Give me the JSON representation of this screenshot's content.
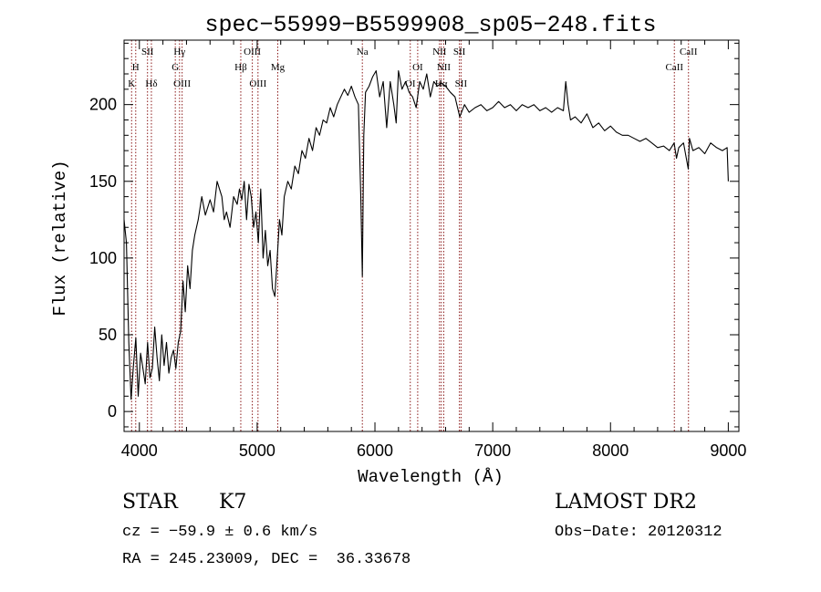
{
  "chart_data": {
    "type": "line",
    "title": "spec−55999−B5599908_sp05−248.fits",
    "xlabel": "Wavelength (Å)",
    "ylabel": "Flux (relative)",
    "xlim": [
      3870,
      9090
    ],
    "ylim": [
      -13,
      242
    ],
    "xticks": [
      4000,
      5000,
      6000,
      7000,
      8000,
      9000
    ],
    "yticks": [
      0,
      50,
      100,
      150,
      200
    ],
    "grid": false,
    "series": [
      {
        "color": "#000000",
        "x": [
          3870,
          3890,
          3910,
          3930,
          3950,
          3970,
          3990,
          4010,
          4030,
          4050,
          4070,
          4090,
          4110,
          4130,
          4150,
          4170,
          4190,
          4210,
          4230,
          4250,
          4270,
          4290,
          4310,
          4330,
          4350,
          4370,
          4390,
          4410,
          4430,
          4450,
          4470,
          4500,
          4530,
          4560,
          4600,
          4630,
          4660,
          4700,
          4720,
          4740,
          4770,
          4800,
          4830,
          4850,
          4870,
          4890,
          4910,
          4930,
          4950,
          4970,
          4990,
          5010,
          5030,
          5050,
          5070,
          5090,
          5110,
          5130,
          5150,
          5170,
          5190,
          5210,
          5230,
          5260,
          5290,
          5320,
          5350,
          5380,
          5410,
          5440,
          5470,
          5500,
          5530,
          5560,
          5590,
          5620,
          5650,
          5680,
          5710,
          5740,
          5770,
          5800,
          5830,
          5860,
          5880,
          5893,
          5905,
          5920,
          5950,
          5980,
          6010,
          6040,
          6070,
          6100,
          6130,
          6160,
          6180,
          6200,
          6230,
          6260,
          6290,
          6320,
          6350,
          6380,
          6410,
          6440,
          6470,
          6500,
          6530,
          6563,
          6600,
          6640,
          6680,
          6720,
          6760,
          6800,
          6850,
          6900,
          6950,
          7000,
          7050,
          7100,
          7150,
          7200,
          7250,
          7300,
          7350,
          7400,
          7450,
          7500,
          7550,
          7600,
          7620,
          7640,
          7660,
          7700,
          7750,
          7800,
          7850,
          7900,
          7950,
          8000,
          8050,
          8100,
          8150,
          8200,
          8250,
          8300,
          8350,
          8400,
          8450,
          8500,
          8540,
          8560,
          8580,
          8620,
          8660,
          8670,
          8700,
          8750,
          8800,
          8850,
          8900,
          8950,
          8990,
          9000
        ],
        "y": [
          125,
          110,
          45,
          8,
          30,
          48,
          10,
          38,
          28,
          18,
          45,
          22,
          28,
          55,
          35,
          20,
          50,
          30,
          45,
          25,
          35,
          40,
          28,
          45,
          52,
          85,
          65,
          95,
          80,
          105,
          115,
          125,
          140,
          128,
          138,
          130,
          150,
          140,
          125,
          130,
          120,
          140,
          135,
          145,
          138,
          150,
          125,
          148,
          140,
          120,
          130,
          110,
          145,
          100,
          118,
          95,
          105,
          80,
          75,
          100,
          125,
          115,
          140,
          150,
          145,
          160,
          155,
          170,
          165,
          178,
          170,
          185,
          180,
          190,
          188,
          198,
          192,
          200,
          205,
          210,
          206,
          212,
          205,
          200,
          140,
          88,
          180,
          208,
          212,
          218,
          222,
          205,
          215,
          185,
          215,
          200,
          188,
          222,
          210,
          215,
          208,
          205,
          198,
          215,
          210,
          220,
          205,
          215,
          212,
          214,
          212,
          208,
          205,
          192,
          200,
          195,
          198,
          200,
          196,
          198,
          202,
          198,
          200,
          196,
          200,
          198,
          200,
          196,
          198,
          195,
          198,
          196,
          215,
          200,
          190,
          192,
          188,
          194,
          185,
          188,
          183,
          186,
          182,
          180,
          180,
          178,
          176,
          178,
          175,
          172,
          173,
          170,
          175,
          165,
          172,
          175,
          158,
          178,
          170,
          172,
          168,
          175,
          172,
          170,
          172,
          150
        ]
      }
    ],
    "lines": [
      {
        "label": "K",
        "x": 3934,
        "row": 3
      },
      {
        "label": "H",
        "x": 3969,
        "row": 2
      },
      {
        "label": "Hδ",
        "x": 4102,
        "row": 3
      },
      {
        "label": "SII",
        "x": 4069,
        "row": 1
      },
      {
        "label": "Hγ",
        "x": 4341,
        "row": 1
      },
      {
        "label": "G",
        "x": 4305,
        "row": 2
      },
      {
        "label": "OIII",
        "x": 4363,
        "row": 3
      },
      {
        "label": "Hβ",
        "x": 4861,
        "row": 2
      },
      {
        "label": "OIII",
        "x": 4959,
        "row": 1
      },
      {
        "label": "OIII",
        "x": 5007,
        "row": 3
      },
      {
        "label": "Mg",
        "x": 5175,
        "row": 2
      },
      {
        "label": "Na",
        "x": 5893,
        "row": 1
      },
      {
        "label": "OI",
        "x": 6300,
        "row": 3
      },
      {
        "label": "OI",
        "x": 6363,
        "row": 2
      },
      {
        "label": "NII",
        "x": 6548,
        "row": 1
      },
      {
        "label": "Hα",
        "x": 6563,
        "row": 3
      },
      {
        "label": "NII",
        "x": 6584,
        "row": 2
      },
      {
        "label": "SII",
        "x": 6717,
        "row": 1
      },
      {
        "label": "SII",
        "x": 6731,
        "row": 3
      },
      {
        "label": "CaII",
        "x": 8542,
        "row": 2
      },
      {
        "label": "CaII",
        "x": 8662,
        "row": 1
      }
    ]
  },
  "info": {
    "object_class": "STAR",
    "subclass": "K7",
    "survey": "LAMOST DR2",
    "cz": "cz = −59.9 ± 0.6 km/s",
    "obs_date": "Obs−Date: 20120312",
    "coords": "RA = 245.23009, DEC =  36.33678"
  }
}
